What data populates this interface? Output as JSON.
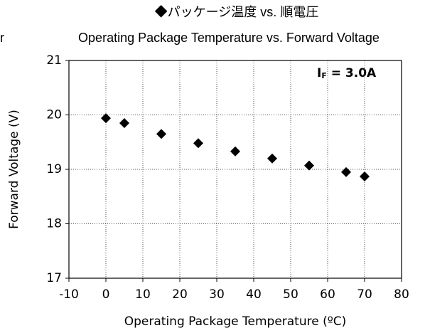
{
  "chart_data": {
    "type": "scatter",
    "title": "◆パッケージ温度 vs. 順電圧",
    "subtitle": "Operating Package Temperature vs. Forward Voltage",
    "fragment": "r",
    "annotation": {
      "symbol": "I",
      "subscript": "F",
      "text": " = 3.0A"
    },
    "x_label": "Operating Package Temperature (ºC)",
    "y_label": "Forward Voltage (V)",
    "x": [
      0,
      5,
      15,
      25,
      35,
      45,
      55,
      65,
      70
    ],
    "series": [
      {
        "color": "#000000",
        "values": [
          19.94,
          19.85,
          19.65,
          19.48,
          19.33,
          19.2,
          19.07,
          18.95,
          18.87
        ]
      }
    ],
    "xlim": [
      -10,
      80
    ],
    "xticks": [
      -10,
      0,
      10,
      20,
      30,
      40,
      50,
      60,
      70,
      80
    ],
    "ylim": [
      17,
      21
    ],
    "yticks": [
      17,
      18,
      19,
      20,
      21
    ],
    "grid": true
  }
}
